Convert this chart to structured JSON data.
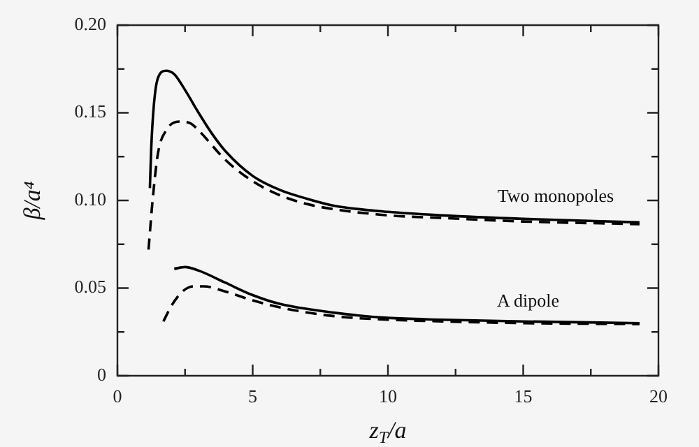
{
  "chart_data": {
    "type": "line",
    "xlabel": "z$_{T}$/a",
    "ylabel": "β/a⁴",
    "xlim": [
      0,
      20
    ],
    "xticks": [
      0,
      {
        "value": 2.5,
        "label": null
      },
      5,
      {
        "value": 7.5,
        "label": null
      },
      10,
      {
        "value": 12.5,
        "label": null
      },
      15,
      {
        "value": 17.5,
        "label": null
      },
      20
    ],
    "ylim": [
      0,
      0.2
    ],
    "yticks": [
      0,
      {
        "value": 0.025,
        "label": null
      },
      0.05,
      {
        "value": 0.075,
        "label": null
      },
      {
        "value": 0.1,
        "label": "0.10"
      },
      {
        "value": 0.125,
        "label": null
      },
      0.15,
      {
        "value": 0.175,
        "label": null
      },
      {
        "value": 0.2,
        "label": "0.20"
      }
    ],
    "grid": false,
    "legend": false,
    "series": [
      {
        "color": "#000000",
        "line_style": "solid",
        "x": [
          1.2,
          1.25,
          1.35,
          1.5,
          1.8,
          2.1,
          2.5,
          3,
          3.5,
          4,
          5,
          6,
          7,
          8,
          10,
          12,
          15,
          19.3
        ],
        "values": [
          0.107,
          0.13,
          0.155,
          0.17,
          0.174,
          0.172,
          0.163,
          0.15,
          0.138,
          0.128,
          0.114,
          0.106,
          0.101,
          0.097,
          0.0935,
          0.0915,
          0.0895,
          0.0875
        ]
      },
      {
        "color": "#000000",
        "line_style": "dashed",
        "x": [
          1.15,
          1.3,
          1.5,
          1.8,
          2.3,
          2.7,
          3,
          4,
          5,
          6,
          7,
          8,
          10,
          12,
          15,
          19.3
        ],
        "values": [
          0.072,
          0.1,
          0.127,
          0.14,
          0.145,
          0.144,
          0.14,
          0.123,
          0.111,
          0.103,
          0.098,
          0.095,
          0.0915,
          0.09,
          0.088,
          0.0865
        ]
      },
      {
        "color": "#000000",
        "line_style": "solid",
        "x": [
          2.1,
          2.5,
          3,
          4,
          5,
          6,
          8,
          10,
          12,
          15,
          19.3
        ],
        "values": [
          0.061,
          0.062,
          0.06,
          0.053,
          0.046,
          0.041,
          0.036,
          0.033,
          0.032,
          0.031,
          0.03
        ]
      },
      {
        "color": "#000000",
        "line_style": "dashed",
        "x": [
          1.7,
          2,
          2.4,
          2.8,
          3.2,
          4,
          5,
          6,
          8,
          10,
          12,
          15,
          19.3
        ],
        "values": [
          0.031,
          0.04,
          0.048,
          0.051,
          0.051,
          0.048,
          0.043,
          0.039,
          0.034,
          0.032,
          0.031,
          0.03,
          0.0295
        ]
      }
    ],
    "annotations": [
      "Two monopoles",
      "A dipole"
    ]
  }
}
